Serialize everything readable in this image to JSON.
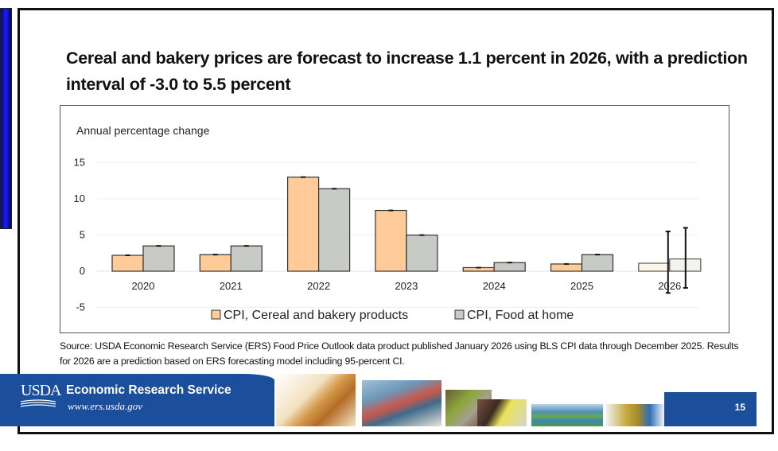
{
  "slide": {
    "title": "Cereal and bakery prices are forecast to increase 1.1 percent in 2026, with a prediction interval of -3.0 to 5.5 percent",
    "source_note": "Source: USDA Economic Research Service (ERS) Food Price Outlook data product published January 2026 using BLS CPI data through December 2025. Results for 2026 are a prediction based on ERS forecasting model including 95-percent CI.",
    "page_number": "15"
  },
  "footer": {
    "logo_text": "USDA",
    "org_name": "Economic Research Service",
    "url": "www.ers.usda.gov",
    "photos": [
      "wheat",
      "cargo-ship",
      "produce-market",
      "shopping-cart",
      "wetlands",
      "town-street"
    ]
  },
  "colors": {
    "cereal": "#ffcc99",
    "food_at_home": "#c8cac6",
    "forecast_cereal": "#fff6e8",
    "forecast_food": "#f1f4ee",
    "banner_blue": "#1b4f9c"
  },
  "chart_data": {
    "type": "bar",
    "title": "",
    "ylabel": "Annual percentage change",
    "xlabel": "",
    "categories": [
      "2020",
      "2021",
      "2022",
      "2023",
      "2024",
      "2025",
      "2026"
    ],
    "series": [
      {
        "name": "CPI, Cereal and bakery products",
        "values": [
          2.2,
          2.3,
          13.0,
          8.4,
          0.5,
          1.0,
          1.1
        ],
        "error_2026": [
          -3.0,
          5.5
        ]
      },
      {
        "name": "CPI, Food at home",
        "values": [
          3.5,
          3.5,
          11.4,
          5.0,
          1.2,
          2.3,
          1.7
        ],
        "error_2026": [
          -2.3,
          6.0
        ]
      }
    ],
    "yticks": [
      15,
      10,
      5,
      0,
      -5
    ],
    "ylim": [
      -5,
      15
    ],
    "grid": true,
    "legend": "bottom-center",
    "forecast_category": "2026"
  }
}
